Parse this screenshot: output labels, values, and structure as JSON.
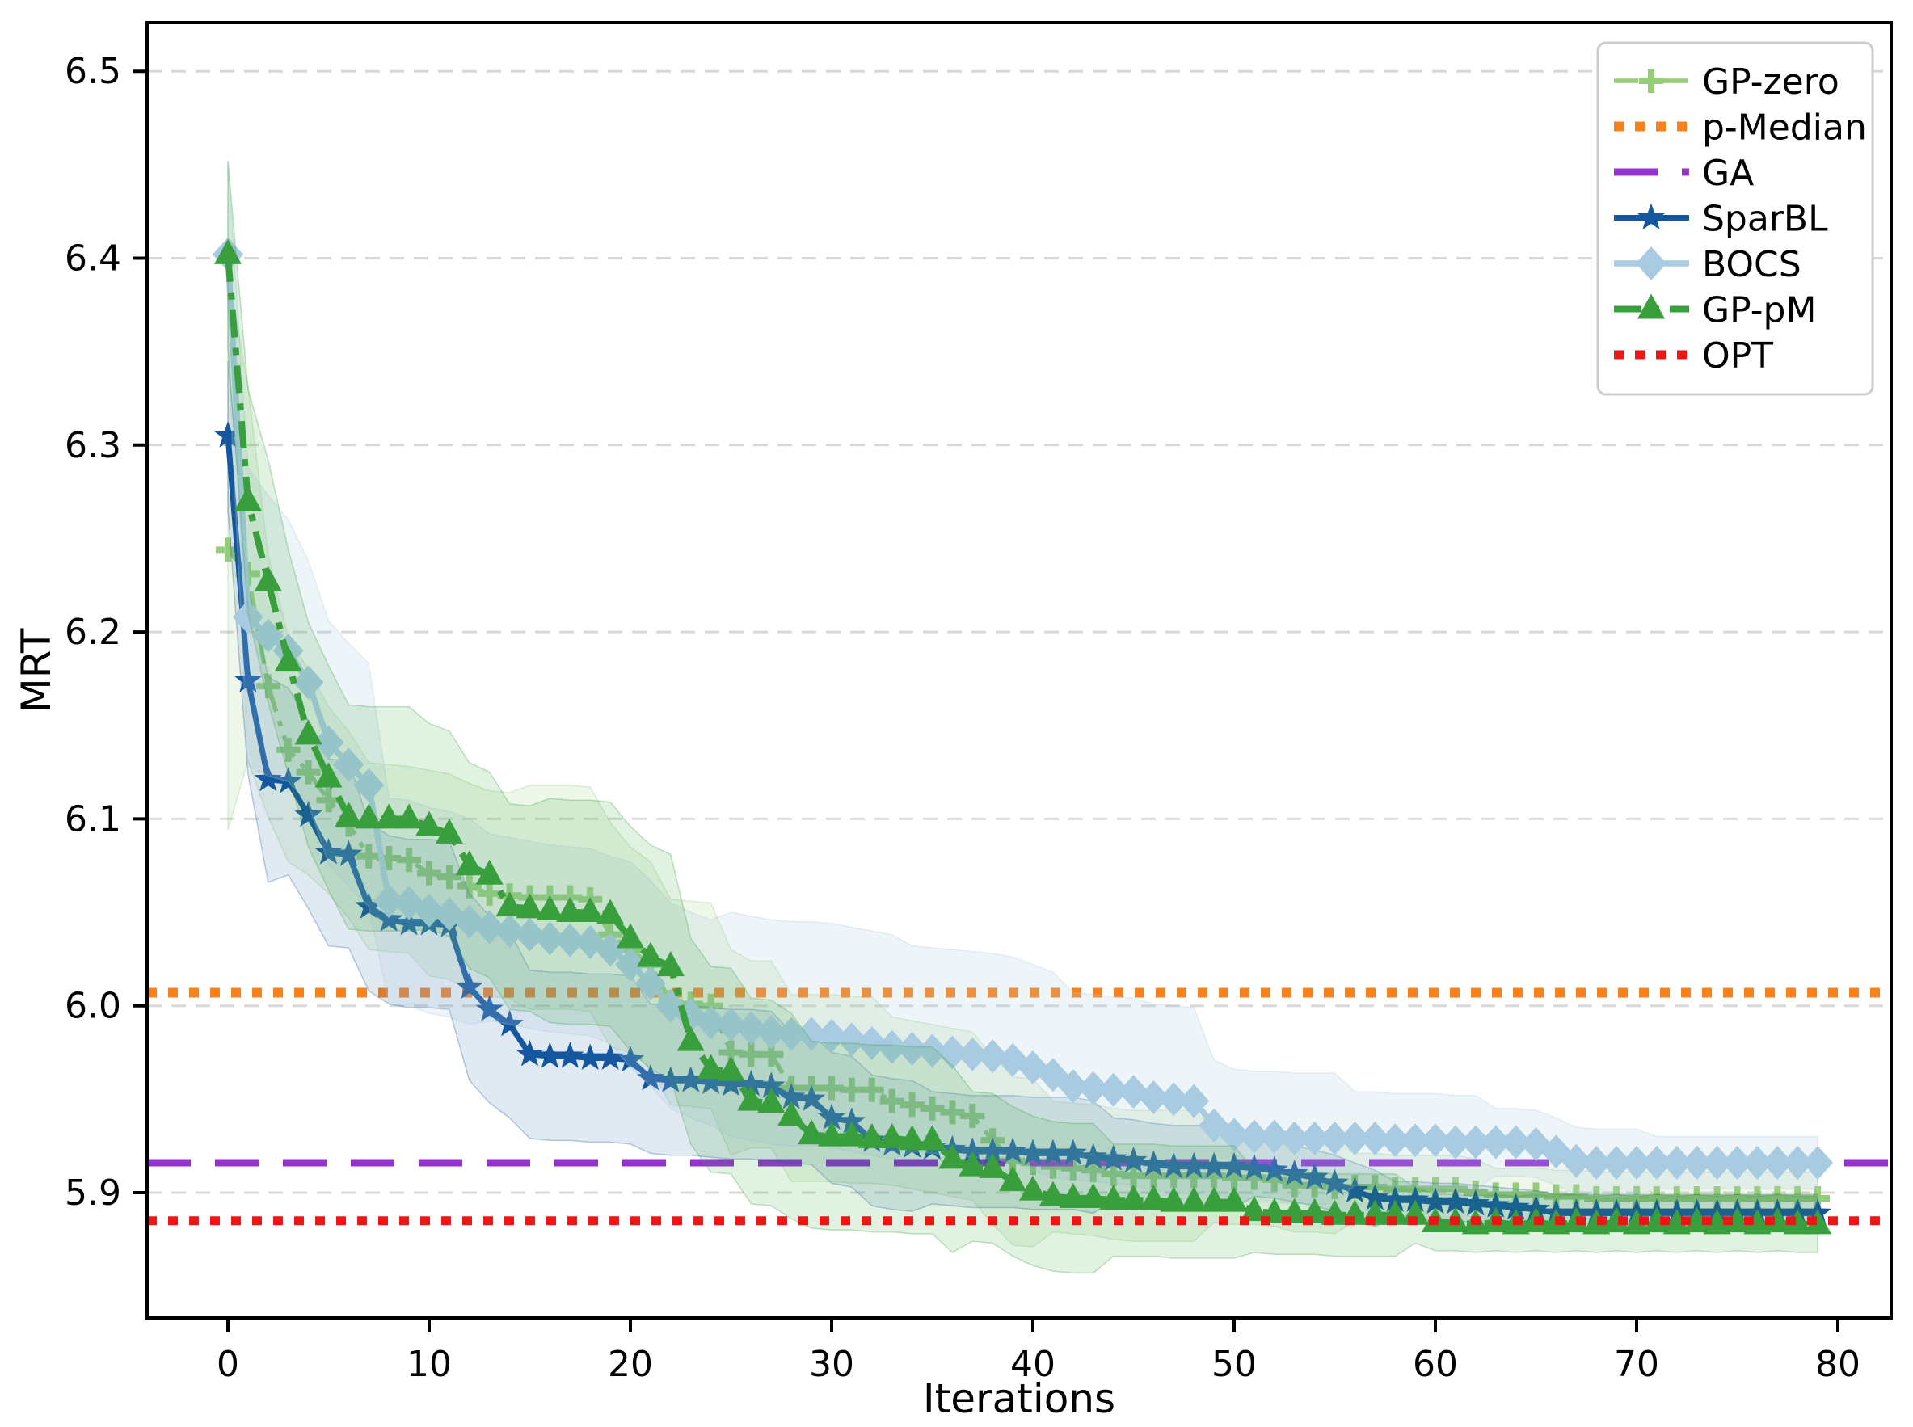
{
  "chart_data": {
    "type": "line",
    "title": "",
    "xlabel": "Iterations",
    "ylabel": "MRT",
    "xlim": [
      -3.9,
      82.7
    ],
    "ylim": [
      5.833,
      6.523
    ],
    "xticks": [
      0,
      10,
      20,
      30,
      40,
      50,
      60,
      70,
      80
    ],
    "yticks": [
      5.9,
      6.0,
      6.1,
      6.2,
      6.3,
      6.4,
      6.5
    ],
    "grid": {
      "axis": "y",
      "style": "dashed",
      "color": "#d8d8d8"
    },
    "legend_position": "upper right",
    "x_start": 0,
    "x_step": 1,
    "n_points": 80,
    "series": [
      {
        "name": "GP-zero",
        "kind": "curve",
        "color": "#95cd77",
        "dash": "30 12 7 12",
        "lw": 5.5,
        "marker": "plus",
        "band_opacity": 0.16,
        "values": [
          6.244,
          6.231,
          6.171,
          6.137,
          6.125,
          6.11,
          6.097,
          6.08,
          6.079,
          6.078,
          6.071,
          6.069,
          6.064,
          6.06,
          6.059,
          6.058,
          6.058,
          6.058,
          6.057,
          6.038,
          6.03,
          6.022,
          6.002,
          6.001,
          6.0,
          5.975,
          5.974,
          5.974,
          5.956,
          5.956,
          5.956,
          5.955,
          5.955,
          5.949,
          5.947,
          5.945,
          5.943,
          5.941,
          5.928,
          5.917,
          5.916,
          5.914,
          5.913,
          5.912,
          5.91,
          5.909,
          5.909,
          5.909,
          5.909,
          5.909,
          5.908,
          5.908,
          5.907,
          5.904,
          5.904,
          5.903,
          5.903,
          5.903,
          5.902,
          5.902,
          5.902,
          5.902,
          5.9,
          5.899,
          5.899,
          5.899,
          5.898,
          5.898,
          5.897,
          5.897,
          5.897,
          5.897,
          5.897,
          5.897,
          5.897,
          5.897,
          5.897,
          5.897,
          5.897,
          5.897
        ],
        "band": [
          0.15,
          0.1,
          0.07,
          0.06,
          0.055,
          0.05,
          0.05,
          0.05,
          0.05,
          0.05,
          0.055,
          0.055,
          0.055,
          0.055,
          0.055,
          0.06,
          0.06,
          0.06,
          0.06,
          0.06,
          0.055,
          0.055,
          0.055,
          0.055,
          0.055,
          0.055,
          0.05,
          0.05,
          0.05,
          0.05,
          0.05,
          0.05,
          0.05,
          0.045,
          0.045,
          0.045,
          0.045,
          0.045,
          0.045,
          0.045,
          0.045,
          0.035,
          0.035,
          0.035,
          0.035,
          0.035,
          0.035,
          0.035,
          0.035,
          0.025,
          0.025,
          0.025,
          0.025,
          0.025,
          0.025,
          0.025,
          0.018,
          0.018,
          0.018,
          0.018,
          0.018,
          0.018,
          0.018,
          0.014,
          0.014,
          0.014,
          0.014,
          0.014,
          0.014,
          0.014,
          0.014,
          0.014,
          0.014,
          0.014,
          0.014,
          0.014,
          0.014,
          0.014,
          0.014,
          0.014
        ]
      },
      {
        "name": "p-Median",
        "kind": "hline",
        "color": "#f8811c",
        "dash": "12 14",
        "lw": 12,
        "marker": "none",
        "value": 6.007
      },
      {
        "name": "GA",
        "kind": "hline",
        "color": "#9233cc",
        "dash": "54 30",
        "lw": 9,
        "marker": "none",
        "value": 5.916
      },
      {
        "name": "SparBL",
        "kind": "curve",
        "color": "#15579e",
        "dash": "",
        "lw": 7,
        "marker": "star",
        "band_opacity": 0.13,
        "values": [
          6.305,
          6.174,
          6.121,
          6.12,
          6.102,
          6.082,
          6.081,
          6.053,
          6.046,
          6.044,
          6.044,
          6.043,
          6.01,
          5.998,
          5.99,
          5.974,
          5.973,
          5.973,
          5.972,
          5.972,
          5.971,
          5.961,
          5.96,
          5.96,
          5.959,
          5.958,
          5.958,
          5.957,
          5.951,
          5.95,
          5.94,
          5.938,
          5.928,
          5.926,
          5.925,
          5.924,
          5.923,
          5.922,
          5.922,
          5.922,
          5.921,
          5.921,
          5.921,
          5.919,
          5.918,
          5.917,
          5.915,
          5.914,
          5.914,
          5.914,
          5.914,
          5.913,
          5.912,
          5.91,
          5.908,
          5.905,
          5.901,
          5.897,
          5.896,
          5.896,
          5.895,
          5.895,
          5.894,
          5.893,
          5.892,
          5.891,
          5.889,
          5.889,
          5.889,
          5.889,
          5.889,
          5.889,
          5.889,
          5.889,
          5.889,
          5.889,
          5.889,
          5.889,
          5.889,
          5.889
        ],
        "band": [
          0.04,
          0.05,
          0.055,
          0.05,
          0.05,
          0.05,
          0.05,
          0.045,
          0.045,
          0.045,
          0.045,
          0.045,
          0.05,
          0.05,
          0.05,
          0.045,
          0.045,
          0.045,
          0.045,
          0.045,
          0.045,
          0.04,
          0.04,
          0.04,
          0.04,
          0.04,
          0.04,
          0.04,
          0.035,
          0.035,
          0.035,
          0.035,
          0.035,
          0.035,
          0.035,
          0.03,
          0.03,
          0.03,
          0.03,
          0.03,
          0.03,
          0.03,
          0.03,
          0.03,
          0.022,
          0.022,
          0.022,
          0.022,
          0.022,
          0.022,
          0.022,
          0.015,
          0.015,
          0.015,
          0.015,
          0.015,
          0.015,
          0.015,
          0.01,
          0.01,
          0.01,
          0.01,
          0.01,
          0.01,
          0.01,
          0.01,
          0.01,
          0.01,
          0.01,
          0.01,
          0.01,
          0.01,
          0.01,
          0.01,
          0.01,
          0.01,
          0.01,
          0.01,
          0.01,
          0.01
        ]
      },
      {
        "name": "BOCS",
        "kind": "curve",
        "color": "#a8cbe2",
        "dash": "",
        "lw": 7.5,
        "marker": "diamond",
        "band_opacity": 0.2,
        "values": [
          6.402,
          6.208,
          6.198,
          6.19,
          6.173,
          6.141,
          6.129,
          6.118,
          6.056,
          6.055,
          6.051,
          6.049,
          6.045,
          6.042,
          6.04,
          6.038,
          6.036,
          6.035,
          6.034,
          6.03,
          6.022,
          6.012,
          6.0,
          5.995,
          5.991,
          5.99,
          5.988,
          5.986,
          5.985,
          5.985,
          5.984,
          5.982,
          5.98,
          5.978,
          5.977,
          5.976,
          5.975,
          5.974,
          5.973,
          5.971,
          5.967,
          5.963,
          5.957,
          5.956,
          5.955,
          5.954,
          5.951,
          5.95,
          5.949,
          5.936,
          5.931,
          5.93,
          5.93,
          5.929,
          5.929,
          5.929,
          5.929,
          5.929,
          5.928,
          5.928,
          5.928,
          5.927,
          5.927,
          5.927,
          5.927,
          5.926,
          5.922,
          5.917,
          5.916,
          5.916,
          5.916,
          5.916,
          5.916,
          5.916,
          5.916,
          5.916,
          5.916,
          5.916,
          5.916,
          5.916
        ],
        "band": [
          0.05,
          0.08,
          0.075,
          0.07,
          0.065,
          0.065,
          0.065,
          0.065,
          0.055,
          0.055,
          0.055,
          0.055,
          0.055,
          0.05,
          0.05,
          0.05,
          0.05,
          0.05,
          0.05,
          0.05,
          0.055,
          0.055,
          0.055,
          0.055,
          0.055,
          0.06,
          0.06,
          0.06,
          0.06,
          0.06,
          0.06,
          0.06,
          0.06,
          0.06,
          0.055,
          0.055,
          0.055,
          0.055,
          0.055,
          0.055,
          0.055,
          0.055,
          0.05,
          0.05,
          0.05,
          0.05,
          0.05,
          0.05,
          0.05,
          0.035,
          0.035,
          0.035,
          0.035,
          0.035,
          0.035,
          0.035,
          0.025,
          0.025,
          0.025,
          0.025,
          0.025,
          0.025,
          0.025,
          0.018,
          0.018,
          0.018,
          0.018,
          0.018,
          0.018,
          0.018,
          0.018,
          0.014,
          0.014,
          0.014,
          0.014,
          0.014,
          0.014,
          0.014,
          0.014,
          0.014
        ]
      },
      {
        "name": "GP-pM",
        "kind": "curve",
        "color": "#389f3c",
        "dash": "34 13 9 13",
        "lw": 8,
        "marker": "triangle",
        "band_opacity": 0.15,
        "values": [
          6.402,
          6.27,
          6.227,
          6.184,
          6.145,
          6.122,
          6.101,
          6.1,
          6.1,
          6.1,
          6.096,
          6.092,
          6.075,
          6.07,
          6.053,
          6.052,
          6.051,
          6.05,
          6.05,
          6.049,
          6.036,
          6.026,
          6.021,
          5.981,
          5.966,
          5.965,
          5.949,
          5.948,
          5.941,
          5.931,
          5.93,
          5.93,
          5.929,
          5.929,
          5.928,
          5.928,
          5.918,
          5.914,
          5.913,
          5.906,
          5.901,
          5.898,
          5.897,
          5.897,
          5.896,
          5.896,
          5.896,
          5.895,
          5.895,
          5.895,
          5.895,
          5.89,
          5.889,
          5.889,
          5.889,
          5.888,
          5.888,
          5.888,
          5.888,
          5.888,
          5.884,
          5.884,
          5.883,
          5.884,
          5.883,
          5.884,
          5.883,
          5.884,
          5.883,
          5.884,
          5.883,
          5.884,
          5.883,
          5.884,
          5.883,
          5.884,
          5.883,
          5.884,
          5.883,
          5.883
        ],
        "band": [
          0.05,
          0.06,
          0.065,
          0.06,
          0.06,
          0.06,
          0.06,
          0.06,
          0.06,
          0.06,
          0.055,
          0.055,
          0.055,
          0.055,
          0.055,
          0.055,
          0.06,
          0.06,
          0.06,
          0.06,
          0.06,
          0.06,
          0.06,
          0.055,
          0.055,
          0.055,
          0.055,
          0.055,
          0.055,
          0.05,
          0.05,
          0.05,
          0.05,
          0.05,
          0.05,
          0.05,
          0.05,
          0.04,
          0.04,
          0.04,
          0.04,
          0.04,
          0.04,
          0.04,
          0.03,
          0.03,
          0.03,
          0.03,
          0.03,
          0.03,
          0.03,
          0.022,
          0.022,
          0.022,
          0.022,
          0.022,
          0.022,
          0.022,
          0.022,
          0.015,
          0.015,
          0.015,
          0.015,
          0.015,
          0.015,
          0.015,
          0.015,
          0.015,
          0.015,
          0.015,
          0.015,
          0.015,
          0.015,
          0.015,
          0.015,
          0.015,
          0.015,
          0.015,
          0.015,
          0.015
        ]
      },
      {
        "name": "OPT",
        "kind": "hline",
        "color": "#f01515",
        "dash": "12 14",
        "lw": 11,
        "marker": "none",
        "value": 5.885
      }
    ],
    "legend_labels": [
      "GP-zero",
      "p-Median",
      "GA",
      "SparBL",
      "BOCS",
      "GP-pM",
      "OPT"
    ]
  }
}
